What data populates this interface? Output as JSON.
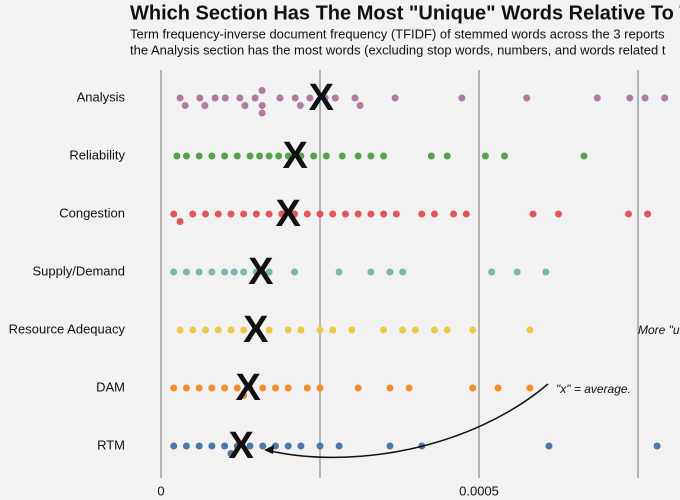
{
  "chart_data": {
    "type": "beeswarm",
    "title": "Which Section Has The Most \"Unique\" Words Relative To The Othe",
    "subtitle": [
      "Term frequency-inverse document frequency (TFIDF) of stemmed words across the 3 reports",
      "the Analysis section has the most words (excluding stop words, numbers, and words related t"
    ],
    "annotations": [
      "More \"u",
      "\"x\" = average."
    ],
    "average_marker": "X",
    "xlim": [
      0,
      0.000816
    ],
    "xticks": [
      0,
      0.0005
    ],
    "minor_xticks": [
      0.00025,
      0.00075
    ],
    "grid": true,
    "series": [
      {
        "name": "Analysis",
        "color": "#b07aa1",
        "average": 0.000252,
        "values": [
          3e-05,
          3.8e-05,
          6.1e-05,
          6.9e-05,
          8.5e-05,
          0.000101,
          0.000124,
          0.000132,
          0.000148,
          0.000159,
          0.000159,
          0.000159,
          0.000187,
          0.000211,
          0.000219,
          0.000234,
          0.000258,
          0.000274,
          0.000305,
          0.000313,
          0.000368,
          0.000473,
          0.000575,
          0.000686,
          0.000737,
          0.000761,
          0.000792
        ]
      },
      {
        "name": "Reliability",
        "color": "#59a14f",
        "average": 0.000211,
        "values": [
          2.5e-05,
          4e-05,
          6e-05,
          8e-05,
          0.0001,
          0.00012,
          0.00014,
          0.000155,
          0.00017,
          0.000185,
          0.0002,
          0.00022,
          0.00024,
          0.00026,
          0.000285,
          0.00031,
          0.00033,
          0.00035,
          0.000425,
          0.00045,
          0.00051,
          0.00054,
          0.000665
        ]
      },
      {
        "name": "Congestion",
        "color": "#e15759",
        "average": 0.0002,
        "values": [
          2e-05,
          3e-05,
          5e-05,
          7e-05,
          9e-05,
          0.00011,
          0.00013,
          0.00015,
          0.00017,
          0.00019,
          0.00021,
          0.00023,
          0.00025,
          0.00027,
          0.00029,
          0.00031,
          0.00033,
          0.00035,
          0.00037,
          0.00041,
          0.00043,
          0.00046,
          0.00048,
          0.000585,
          0.000625,
          0.000735,
          0.000765
        ]
      },
      {
        "name": "Supply/Demand",
        "color": "#76b7b2",
        "average": 0.000157,
        "values": [
          2e-05,
          4e-05,
          6e-05,
          8e-05,
          0.0001,
          0.000115,
          0.00013,
          0.00015,
          0.00017,
          0.00021,
          0.00028,
          0.00033,
          0.00036,
          0.00038,
          0.00052,
          0.00056,
          0.000605
        ]
      },
      {
        "name": "Resource Adequacy",
        "color": "#edc948",
        "average": 0.000149,
        "values": [
          3e-05,
          5e-05,
          7e-05,
          9e-05,
          0.00011,
          0.00013,
          0.00015,
          0.00017,
          0.0002,
          0.00022,
          0.00025,
          0.00027,
          0.0003,
          0.00035,
          0.00038,
          0.0004,
          0.00043,
          0.00045,
          0.00049,
          0.00058
        ]
      },
      {
        "name": "DAM",
        "color": "#f28e2b",
        "average": 0.000137,
        "values": [
          2e-05,
          4e-05,
          6e-05,
          8e-05,
          0.0001,
          0.00012,
          0.00013,
          0.00014,
          0.00016,
          0.00018,
          0.0002,
          0.00023,
          0.00025,
          0.00031,
          0.00036,
          0.00039,
          0.00049,
          0.00053,
          0.00058
        ]
      },
      {
        "name": "RTM",
        "color": "#4e79a7",
        "average": 0.000126,
        "values": [
          2e-05,
          4e-05,
          6e-05,
          8e-05,
          0.0001,
          0.00011,
          0.00012,
          0.00014,
          0.00016,
          0.00018,
          0.0002,
          0.00022,
          0.00025,
          0.00028,
          0.00036,
          0.00041,
          0.00061,
          0.00078
        ]
      }
    ]
  }
}
